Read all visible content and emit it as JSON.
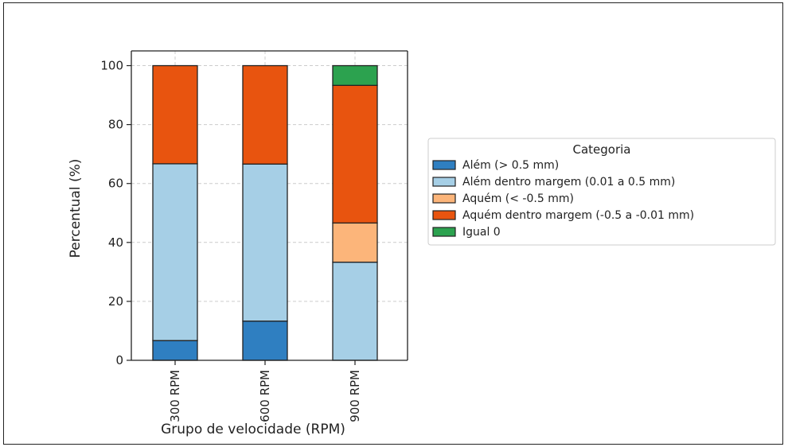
{
  "chart_data": {
    "type": "bar",
    "stacked": true,
    "categories": [
      "300 RPM",
      "600 RPM",
      "900 RPM"
    ],
    "series": [
      {
        "name": "Além (> 0.5 mm)",
        "color": "#2f7fc1",
        "values": [
          6.7,
          13.3,
          0
        ]
      },
      {
        "name": "Além dentro margem (0.01 a 0.5 mm)",
        "color": "#a6cfe6",
        "values": [
          60.0,
          53.3,
          33.3
        ]
      },
      {
        "name": "Aquém (< -0.5 mm)",
        "color": "#fcb57a",
        "values": [
          0,
          0,
          13.3
        ]
      },
      {
        "name": "Aquém dentro margem (-0.5 a -0.01 mm)",
        "color": "#e8540f",
        "values": [
          33.3,
          33.4,
          46.7
        ]
      },
      {
        "name": "Igual 0",
        "color": "#2ca24f",
        "values": [
          0,
          0,
          6.7
        ]
      }
    ],
    "xlabel": "Grupo de velocidade (RPM)",
    "ylabel": "Percentual (%)",
    "ylim": [
      0,
      105
    ],
    "yticks": [
      0,
      20,
      40,
      60,
      80,
      100
    ],
    "grid": true,
    "legend_title": "Categoria",
    "legend_position": "right"
  }
}
